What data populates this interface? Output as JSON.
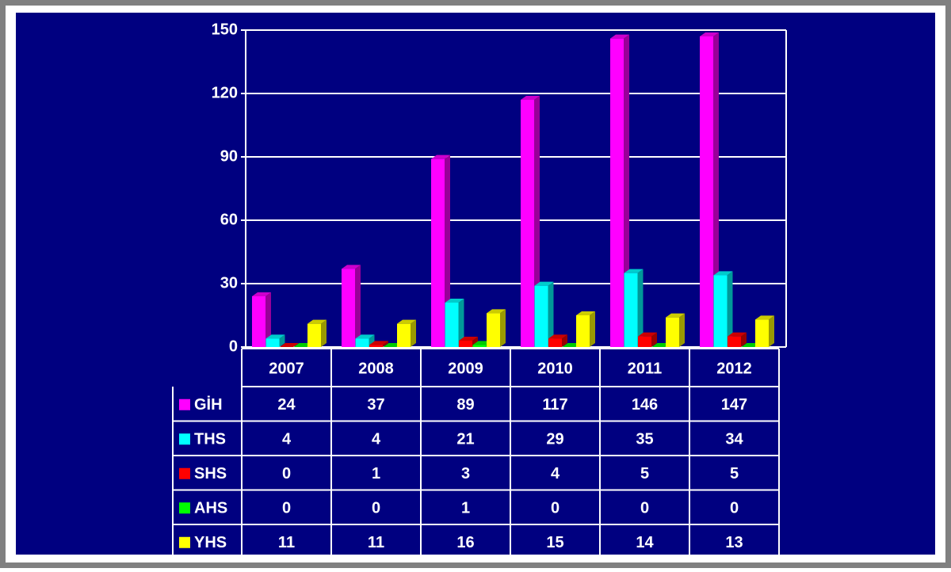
{
  "chart_data": {
    "type": "bar",
    "categories": [
      "2007",
      "2008",
      "2009",
      "2010",
      "2011",
      "2012"
    ],
    "series": [
      {
        "name": "GİH",
        "color": "#ff00ff",
        "values": [
          24,
          37,
          89,
          117,
          146,
          147
        ]
      },
      {
        "name": "THS",
        "color": "#00ffff",
        "values": [
          4,
          4,
          21,
          29,
          35,
          34
        ]
      },
      {
        "name": "SHS",
        "color": "#ff0000",
        "values": [
          0,
          1,
          3,
          4,
          5,
          5
        ]
      },
      {
        "name": "AHS",
        "color": "#00ff00",
        "values": [
          0,
          0,
          1,
          0,
          0,
          0
        ]
      },
      {
        "name": "YHS",
        "color": "#ffff00",
        "values": [
          11,
          11,
          16,
          15,
          14,
          13
        ]
      }
    ],
    "ylim": [
      0,
      150
    ],
    "yticks": [
      0,
      30,
      60,
      90,
      120,
      150
    ],
    "grid": true
  }
}
